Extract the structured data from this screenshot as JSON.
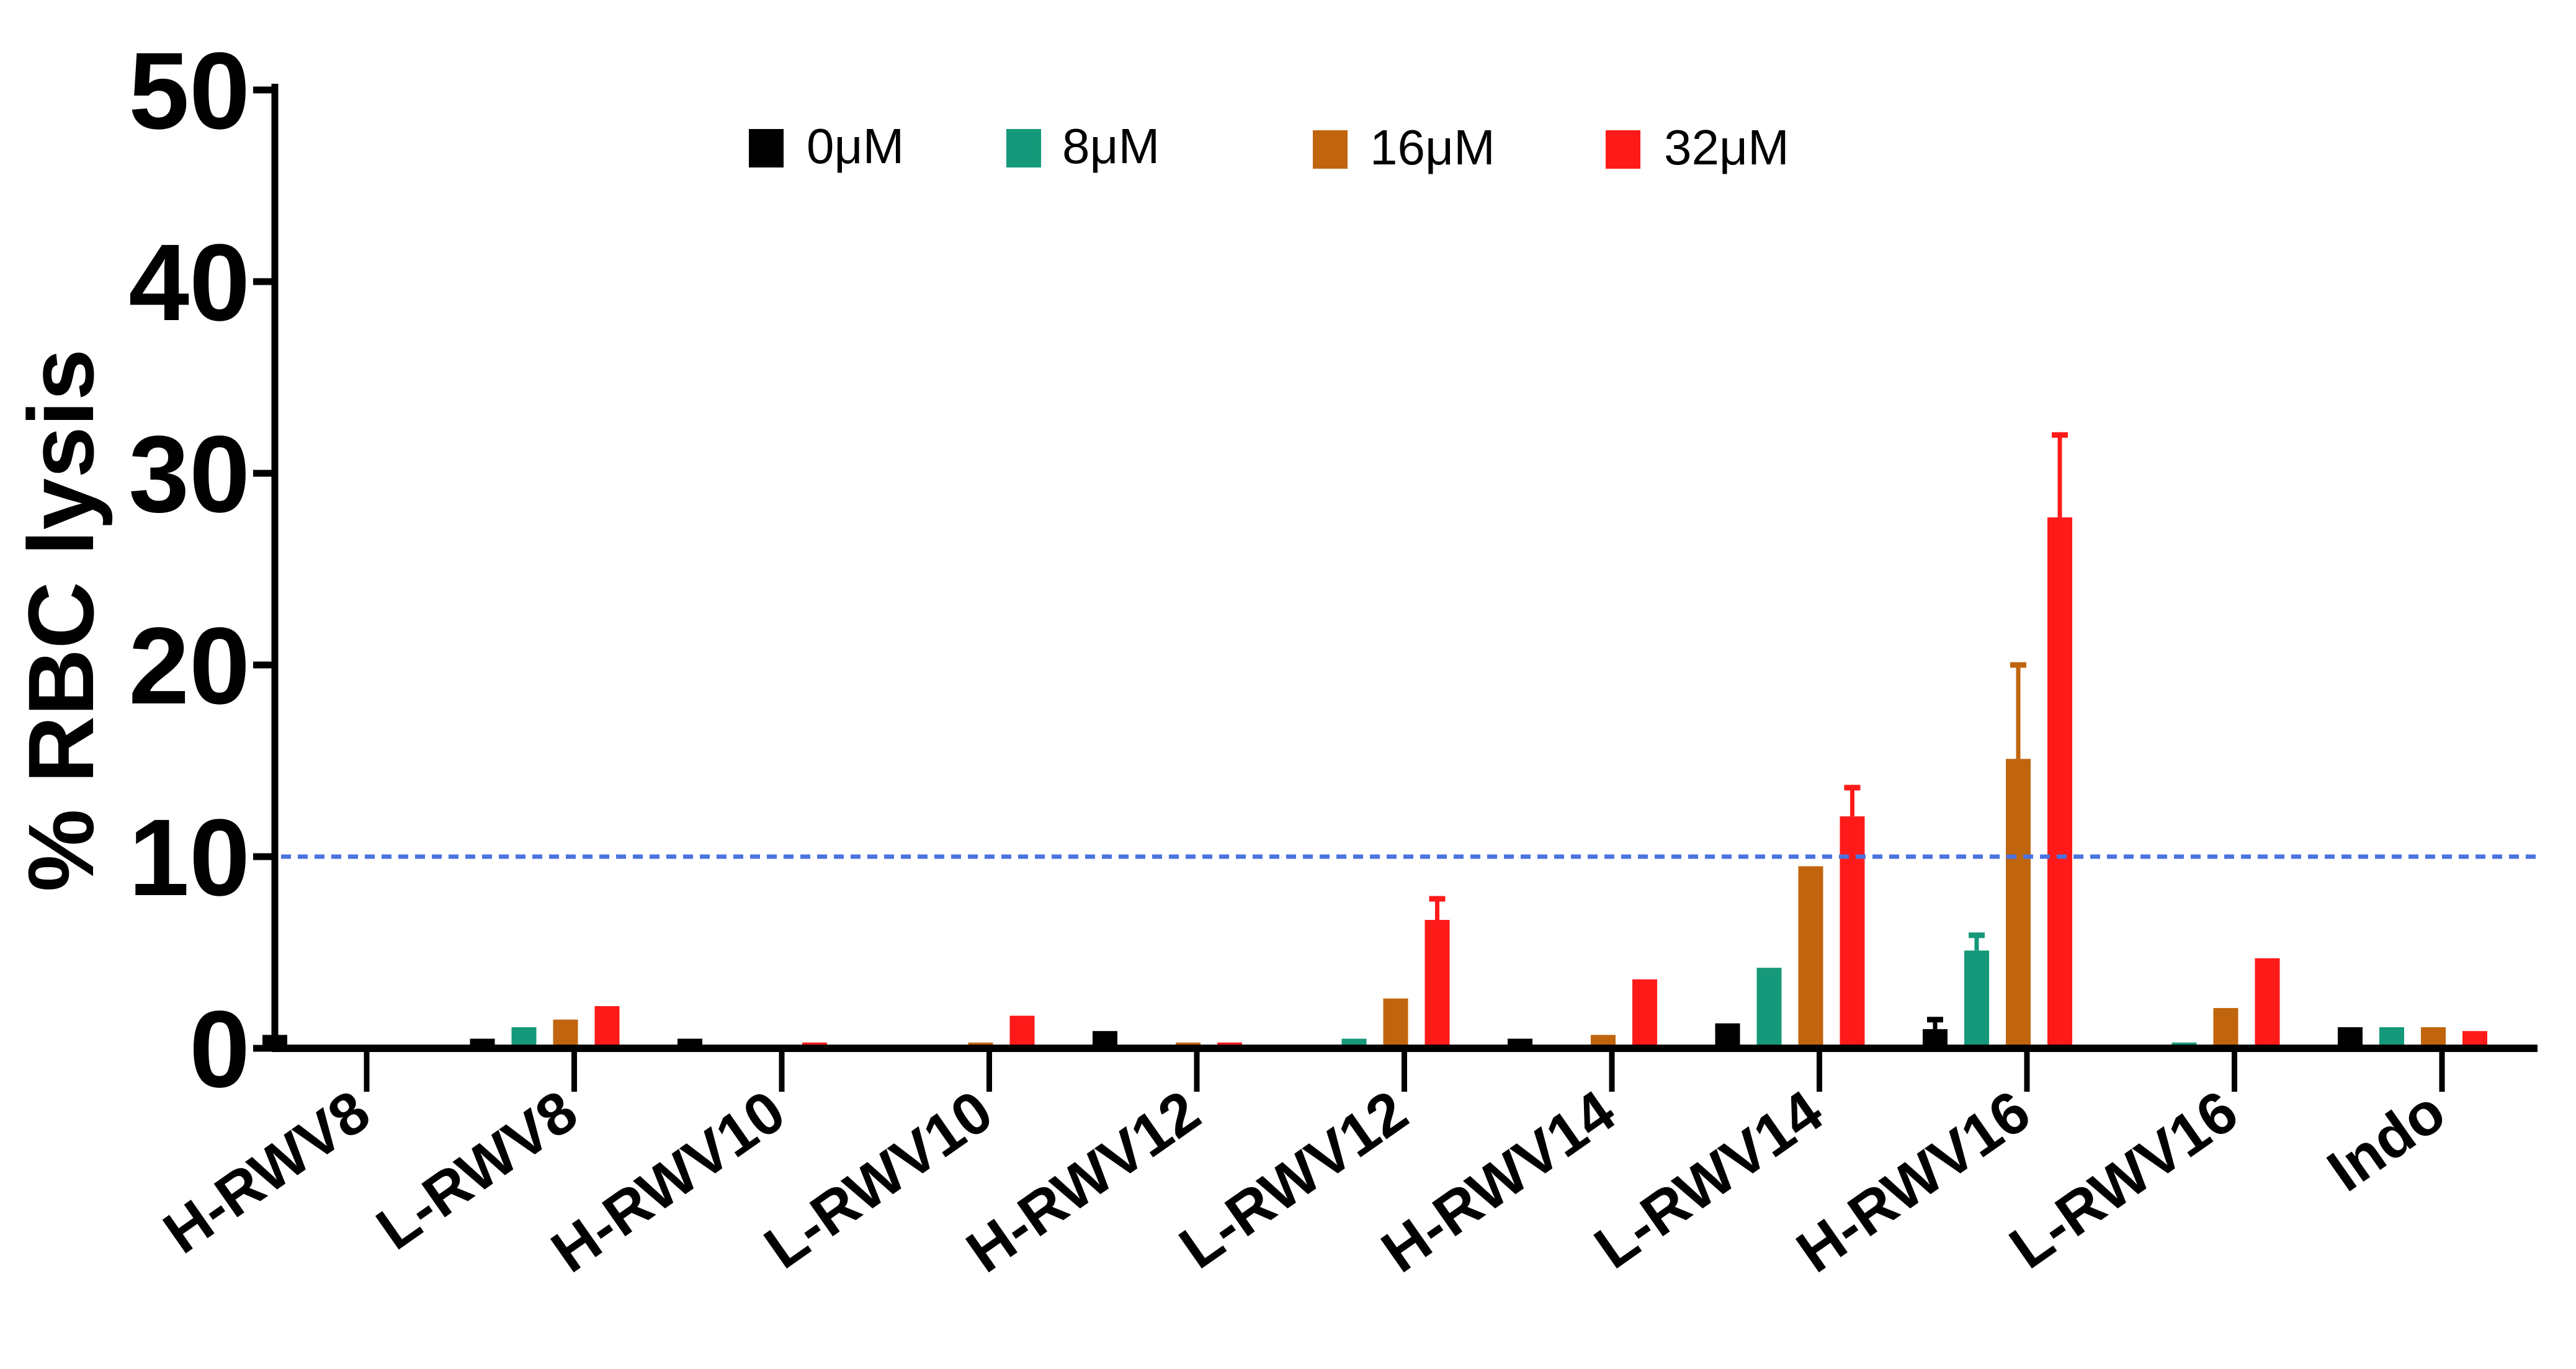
{
  "chart_data": {
    "type": "bar",
    "title": "",
    "xlabel": "",
    "ylabel": "% RBC lysis",
    "ylim": [
      0,
      50
    ],
    "yticks": [
      "0",
      "10",
      "20",
      "30",
      "40",
      "50"
    ],
    "categories": [
      "H-RWV8",
      "L-RWV8",
      "H-RWV10",
      "L-RWV10",
      "H-RWV12",
      "L-RWV12",
      "H-RWV14",
      "L-RWV14",
      "H-RWV16",
      "L-RWV16",
      "Indo"
    ],
    "series": [
      {
        "name": "0μM",
        "color": "#000000",
        "values": [
          0.7,
          0.5,
          0.5,
          0.0,
          0.9,
          0.0,
          0.5,
          1.3,
          1.0,
          0.0,
          1.1
        ],
        "errors": [
          0,
          0,
          0,
          0,
          0,
          0,
          0,
          0,
          0.5,
          0,
          0
        ]
      },
      {
        "name": "8μM",
        "color": "#16997a",
        "values": [
          0.0,
          1.1,
          0.0,
          0.0,
          0.0,
          0.5,
          0.0,
          4.2,
          5.1,
          0.3,
          1.1
        ],
        "errors": [
          0,
          0,
          0,
          0,
          0,
          0,
          0,
          0,
          0.8,
          0,
          0
        ]
      },
      {
        "name": "16μM",
        "color": "#c0650e",
        "values": [
          0.0,
          1.5,
          0.0,
          0.3,
          0.3,
          2.6,
          0.7,
          9.5,
          15.1,
          2.1,
          1.1
        ],
        "errors": [
          0,
          0,
          0,
          0,
          0,
          0,
          0,
          0,
          4.9,
          0,
          0
        ]
      },
      {
        "name": "32μM",
        "color": "#ff1a1a",
        "values": [
          0.0,
          2.2,
          0.3,
          1.7,
          0.3,
          6.7,
          3.6,
          12.1,
          27.7,
          4.7,
          0.9
        ],
        "errors": [
          0,
          0,
          0,
          0,
          0,
          1.1,
          0,
          1.5,
          4.3,
          0,
          0
        ]
      }
    ],
    "reference_line": {
      "y": 10,
      "color": "#4a72e0",
      "style": "dotted"
    },
    "legend_position": "top-center",
    "grid": false
  }
}
